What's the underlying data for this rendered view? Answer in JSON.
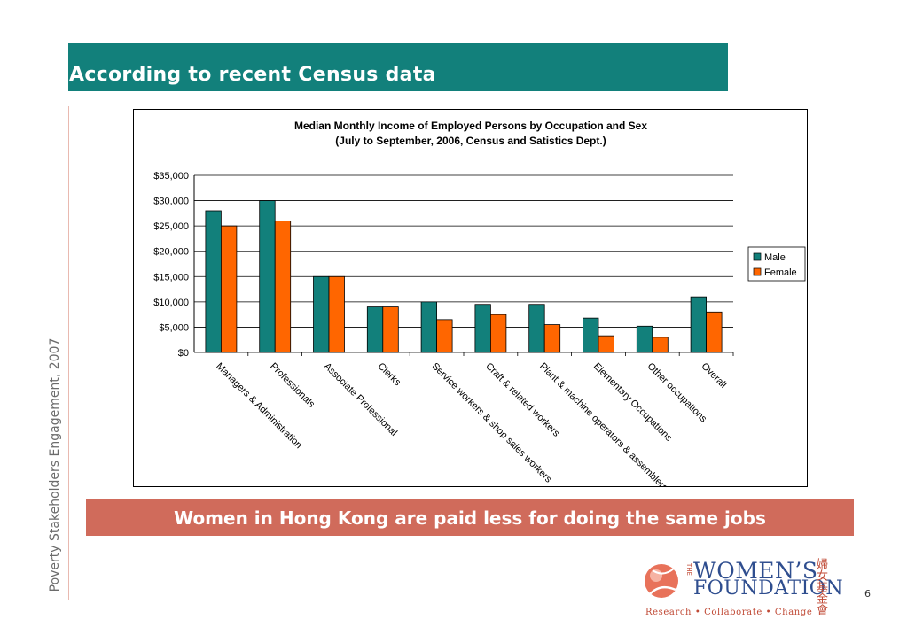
{
  "slide": {
    "title": "According to recent Census data",
    "side_text": "Poverty Stakeholders Engagement, 2007",
    "banner": "Women in Hong Kong are paid less for doing the same jobs",
    "page_number": "6"
  },
  "logo": {
    "the": "THE",
    "line1": "WOMEN’S",
    "line2": "FOUNDATION",
    "tagline": "Research • Collaborate • Change",
    "chinese": "婦女基金會",
    "colors": {
      "primary": "#2f4e8f",
      "accent": "#c04a36"
    }
  },
  "colors": {
    "header": "#12807b",
    "banner": "#d06b5b",
    "male": "#12807b",
    "female": "#ff6600"
  },
  "chart_data": {
    "type": "bar",
    "title": "Median Monthly Income of Employed Persons by Occupation and Sex",
    "subtitle": "(July to September, 2006, Census and Satistics Dept.)",
    "categories": [
      "Managers & Administration",
      "Professionals",
      "Associate Professional",
      "Clerks",
      "Service workers & shop sales workers",
      "Craft & related workers",
      "Plant & machine operators & assemblers",
      "Elementary Occupations",
      "Other occupations",
      "Overall"
    ],
    "series": [
      {
        "name": "Male",
        "values": [
          28000,
          30000,
          15000,
          9000,
          10000,
          9500,
          9500,
          6800,
          5200,
          11000
        ]
      },
      {
        "name": "Female",
        "values": [
          25000,
          26000,
          15000,
          9000,
          6500,
          7500,
          5500,
          3300,
          3000,
          8000
        ]
      }
    ],
    "yticks": [
      "$0",
      "$5,000",
      "$10,000",
      "$15,000",
      "$20,000",
      "$25,000",
      "$30,000",
      "$35,000"
    ],
    "ylim": [
      0,
      35000
    ],
    "grid": true,
    "legend": "right"
  }
}
